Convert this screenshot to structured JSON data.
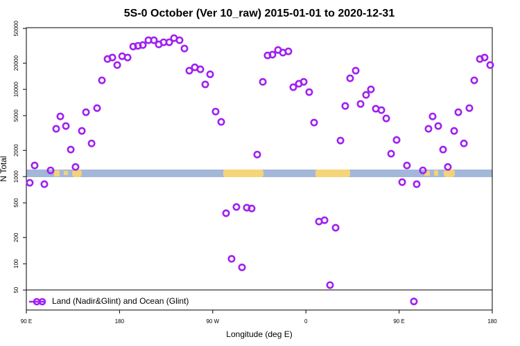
{
  "chart_data": {
    "type": "scatter",
    "title": "5S-0 October (Ver 10_raw)   2015-01-01 to 2020-12-31",
    "x_label": "Longitude (deg E)",
    "y_label": "N Total",
    "log_y": true,
    "legend": "bottom",
    "xlim": [
      90,
      540
    ],
    "xticks": [
      {
        "value": 90,
        "label": "90 E"
      },
      180,
      {
        "value": 270,
        "label": "90 W"
      },
      {
        "value": 360,
        "label": "0"
      },
      {
        "value": 450,
        "label": "90 E"
      },
      {
        "value": 540,
        "label": "180"
      }
    ],
    "ylim": [
      29.5,
      51000
    ],
    "yticks": [
      50,
      100,
      200,
      500,
      1000,
      2000,
      5000,
      10000,
      20000,
      50000
    ],
    "series": [
      {
        "name": "Land (Nadir&Glint) and Ocean (Glint)",
        "color": "#a020f0",
        "x": [
          93.3,
          98,
          107.4,
          113.4,
          118.8,
          122.8,
          128.2,
          132.9,
          137.5,
          143.6,
          147.6,
          153,
          158.3,
          163,
          168.4,
          173.1,
          177.8,
          182.5,
          187.8,
          193.2,
          197.8,
          202.5,
          207.9,
          213.2,
          217.9,
          222.6,
          228,
          232.6,
          238,
          242.7,
          247.4,
          252.7,
          258.1,
          262.8,
          267.5,
          272.8,
          278.2,
          282.9,
          288.2,
          292.9,
          298.3,
          302.9,
          307.6,
          313,
          318.4,
          323,
          327.7,
          333.1,
          337.8,
          343.1,
          347.8,
          353.2,
          357.9,
          363.2,
          367.9,
          372.6,
          378,
          383.3,
          388.7,
          393.4,
          398,
          402.7,
          408.1,
          412.8,
          418.1,
          422.8,
          427.5,
          432.9,
          437.6,
          442.3,
          447.6,
          453,
          457.6,
          464.3,
          467,
          473,
          478.4,
          482.4,
          487.8,
          492.5,
          497.1,
          503.2,
          507.2,
          512.6,
          517.9,
          522.6,
          528,
          532.6,
          538
        ],
        "values": [
          849,
          1340,
          818,
          1178,
          3530,
          4900,
          3800,
          2040,
          1290,
          3340,
          5470,
          2400,
          6100,
          12700,
          22300,
          23200,
          19000,
          24000,
          23200,
          31000,
          31600,
          32200,
          36600,
          36600,
          32800,
          34700,
          34700,
          38700,
          36600,
          29400,
          16400,
          17900,
          17000,
          11400,
          14900,
          5570,
          4240,
          380,
          114,
          448,
          91,
          440,
          431,
          1790,
          12200,
          24500,
          25000,
          28300,
          26400,
          27300,
          10600,
          11600,
          12200,
          9300,
          4160,
          305,
          316,
          57,
          259,
          2590,
          6450,
          13400,
          16400,
          6810,
          8640,
          10000,
          6000,
          5780,
          4640,
          1830,
          2630,
          864,
          1340,
          37,
          818,
          1178,
          3530,
          4900,
          3800,
          2040,
          1290,
          3340,
          5470,
          2400,
          6100,
          12700,
          22300,
          23200,
          19000
        ]
      }
    ]
  }
}
